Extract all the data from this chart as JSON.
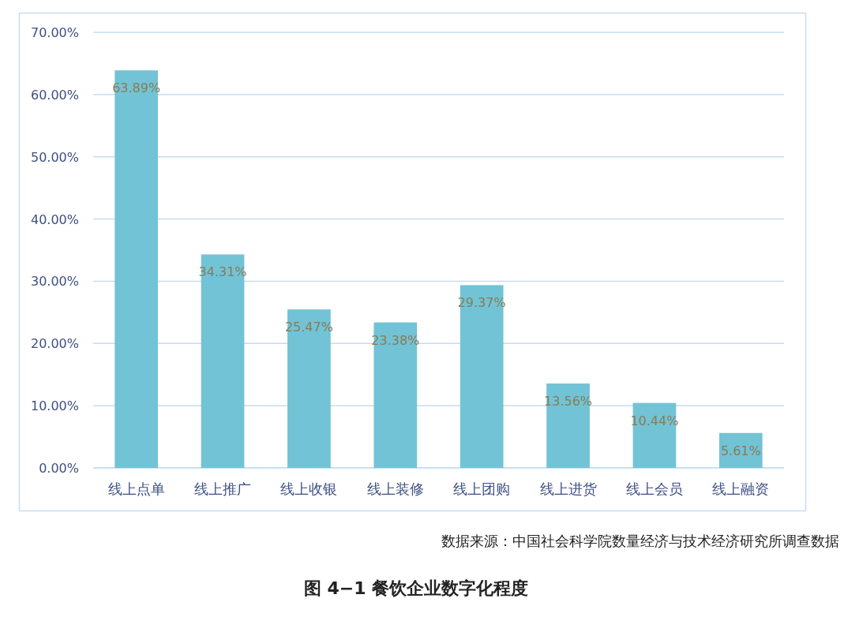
{
  "chart_data": {
    "type": "bar",
    "title": "图 4−1 餐饮企业数字化程度",
    "categories": [
      "线上点单",
      "线上推广",
      "线上收银",
      "线上装修",
      "线上团购",
      "线上进货",
      "线上会员",
      "线上融资"
    ],
    "values": [
      63.89,
      34.31,
      25.47,
      23.38,
      29.37,
      13.56,
      10.44,
      5.61
    ],
    "value_labels": [
      "63.89%",
      "34.31%",
      "25.47%",
      "23.38%",
      "29.37%",
      "13.56%",
      "10.44%",
      "5.61%"
    ],
    "color": "#72c3d5",
    "ylim": [
      0,
      70
    ],
    "yticks": [
      {
        "value": 0,
        "label": "0.00%"
      },
      {
        "value": 10,
        "label": "10.00%"
      },
      {
        "value": 20,
        "label": "20.00%"
      },
      {
        "value": 30,
        "label": "30.00%"
      },
      {
        "value": 40,
        "label": "40.00%"
      },
      {
        "value": 50,
        "label": "50.00%"
      },
      {
        "value": 60,
        "label": "60.00%"
      },
      {
        "value": 70,
        "label": "70.00%"
      }
    ],
    "grid": "y",
    "annotations": [
      "数据来源：中国社会科学院数量经济与技术经济研究所调查数据"
    ]
  }
}
